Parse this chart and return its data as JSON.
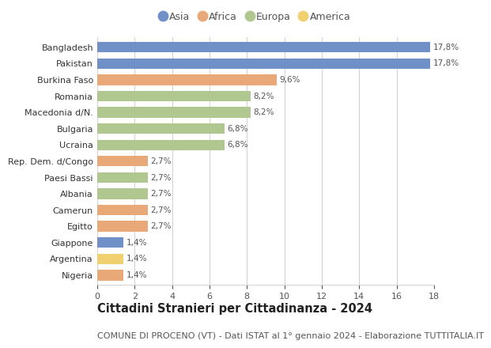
{
  "categories": [
    "Bangladesh",
    "Pakistan",
    "Burkina Faso",
    "Romania",
    "Macedonia d/N.",
    "Bulgaria",
    "Ucraina",
    "Rep. Dem. d/Congo",
    "Paesi Bassi",
    "Albania",
    "Camerun",
    "Egitto",
    "Giappone",
    "Argentina",
    "Nigeria"
  ],
  "values": [
    17.8,
    17.8,
    9.6,
    8.2,
    8.2,
    6.8,
    6.8,
    2.7,
    2.7,
    2.7,
    2.7,
    2.7,
    1.4,
    1.4,
    1.4
  ],
  "labels": [
    "17,8%",
    "17,8%",
    "9,6%",
    "8,2%",
    "8,2%",
    "6,8%",
    "6,8%",
    "2,7%",
    "2,7%",
    "2,7%",
    "2,7%",
    "2,7%",
    "1,4%",
    "1,4%",
    "1,4%"
  ],
  "continents": [
    "Asia",
    "Asia",
    "Africa",
    "Europa",
    "Europa",
    "Europa",
    "Europa",
    "Africa",
    "Europa",
    "Europa",
    "Africa",
    "Africa",
    "Asia",
    "America",
    "Africa"
  ],
  "colors": {
    "Asia": "#7090c8",
    "Africa": "#e8a878",
    "Europa": "#b0c890",
    "America": "#f0d070"
  },
  "legend_order": [
    "Asia",
    "Africa",
    "Europa",
    "America"
  ],
  "title": "Cittadini Stranieri per Cittadinanza - 2024",
  "subtitle": "COMUNE DI PROCENO (VT) - Dati ISTAT al 1° gennaio 2024 - Elaborazione TUTTITALIA.IT",
  "xlim": [
    0,
    18
  ],
  "xticks": [
    0,
    2,
    4,
    6,
    8,
    10,
    12,
    14,
    16,
    18
  ],
  "background_color": "#ffffff",
  "grid_color": "#d0d0d0",
  "title_fontsize": 10.5,
  "subtitle_fontsize": 8,
  "bar_height": 0.65,
  "label_fontsize": 7.5,
  "ytick_fontsize": 8,
  "xtick_fontsize": 8
}
